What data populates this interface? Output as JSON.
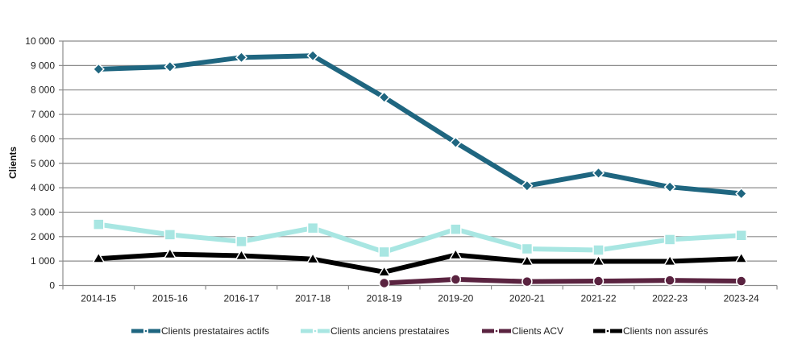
{
  "chart_data": {
    "type": "line",
    "title": "",
    "xlabel": "",
    "ylabel": "Clients",
    "ylim": [
      0,
      10000
    ],
    "ytick_step": 1000,
    "ytick_labels": [
      "0",
      "1 000",
      "2 000",
      "3 000",
      "4 000",
      "5 000",
      "6 000",
      "7 000",
      "8 000",
      "9 000",
      "10 000"
    ],
    "grid": true,
    "legend_position": "bottom",
    "categories": [
      "2014-15",
      "2015-16",
      "2016-17",
      "2017-18",
      "2018-19",
      "2019-20",
      "2020-21",
      "2021-22",
      "2022-23",
      "2023-24"
    ],
    "series": [
      {
        "name": "Clients prestataires actifs",
        "color": "#1F6680",
        "marker": "diamond",
        "values": [
          8850,
          8950,
          9330,
          9400,
          7700,
          5850,
          4080,
          4600,
          4030,
          3760
        ]
      },
      {
        "name": "Clients anciens prestataires",
        "color": "#A8E6E2",
        "marker": "square",
        "values": [
          2500,
          2080,
          1800,
          2350,
          1370,
          2300,
          1500,
          1450,
          1880,
          2050
        ]
      },
      {
        "name": "Clients ACV",
        "color": "#5A2340",
        "marker": "circle",
        "values": [
          null,
          null,
          null,
          null,
          100,
          250,
          160,
          180,
          210,
          180
        ]
      },
      {
        "name": "Clients non assurés",
        "color": "#000000",
        "marker": "triangle",
        "values": [
          1100,
          1280,
          1220,
          1080,
          550,
          1250,
          990,
          990,
          990,
          1100
        ]
      }
    ]
  }
}
